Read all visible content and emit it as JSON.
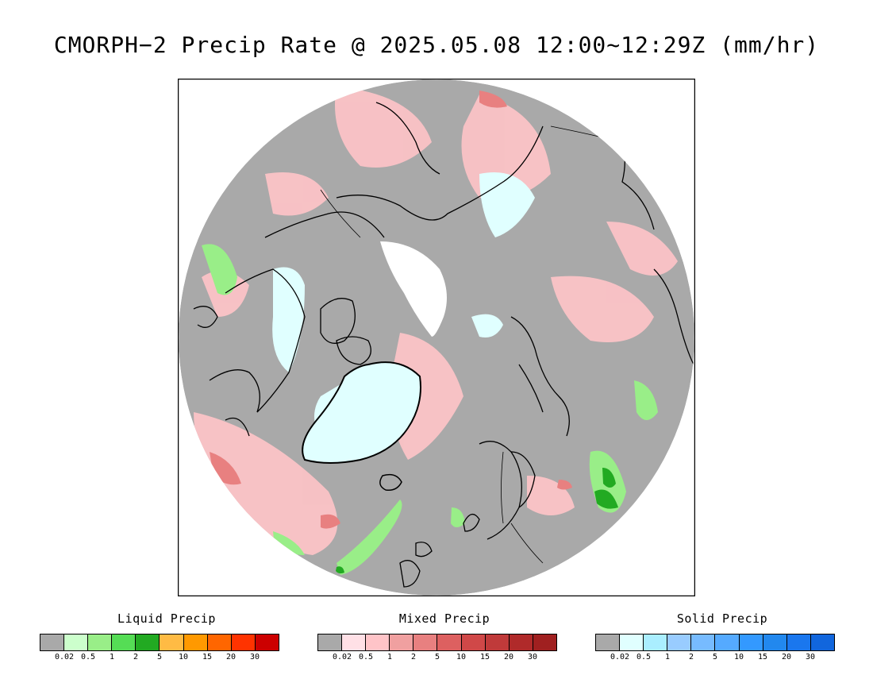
{
  "title": "CMORPH−2 Precip Rate @ 2025.05.08 12:00~12:29Z (mm/hr)",
  "map": {
    "projection": "north-polar-stereographic",
    "colors": {
      "background": "#a9a9a9",
      "no_data": "#ffffff",
      "coastline": "#000000",
      "border": "#000000"
    }
  },
  "legends": [
    {
      "title": "Liquid Precip",
      "ticks": [
        "0.02",
        "0.5",
        "1",
        "2",
        "5",
        "10",
        "15",
        "20",
        "30"
      ],
      "colors": [
        "#a9a9a9",
        "#ccffcc",
        "#99ee88",
        "#55dd55",
        "#22aa22",
        "#ffbb44",
        "#ff9900",
        "#ff6600",
        "#ff3300",
        "#cc0000"
      ]
    },
    {
      "title": "Mixed Precip",
      "ticks": [
        "0.02",
        "0.5",
        "1",
        "2",
        "5",
        "10",
        "15",
        "20",
        "30"
      ],
      "colors": [
        "#a9a9a9",
        "#ffe0e6",
        "#ffc4c8",
        "#f0a0a0",
        "#e88080",
        "#dd6060",
        "#d04848",
        "#c03a3a",
        "#b02a2a",
        "#a02020"
      ]
    },
    {
      "title": "Solid Precip",
      "ticks": [
        "0.02",
        "0.5",
        "1",
        "2",
        "5",
        "10",
        "15",
        "20",
        "30"
      ],
      "colors": [
        "#a9a9a9",
        "#e0ffff",
        "#aaeeff",
        "#99ccff",
        "#77bbff",
        "#55aaff",
        "#3399ff",
        "#2288ee",
        "#1a77ee",
        "#1166dd"
      ]
    }
  ]
}
